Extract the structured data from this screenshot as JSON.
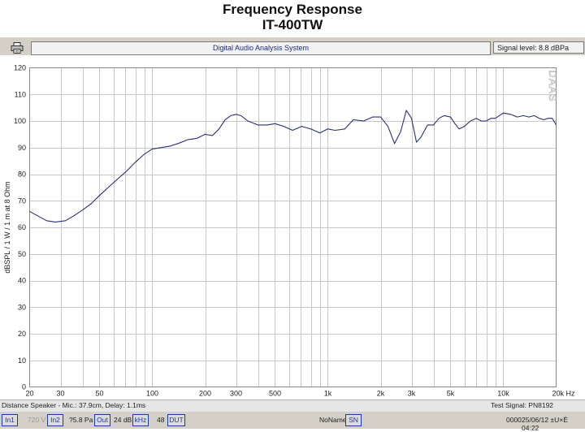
{
  "header": {
    "title": "Frequency Response",
    "subtitle": "IT-400TW"
  },
  "toolbar": {
    "app_name": "Digital Audio Analysis System",
    "signal_level": "Signal level:  8.8 dBPa"
  },
  "status": {
    "distance": "Distance Speaker - Mic.: 37.9cm, Delay: 1.1ms",
    "test_signal": "Test Signal: PN8192",
    "in1": "In1",
    "volt": "720 V",
    "in2": "In2",
    "pa": "?5.8 Pa",
    "out": "Out",
    "db": "24 dB",
    "khz": "kHz",
    "num48": "48",
    "dut": "DUT",
    "noname": "NoName",
    "sn": "SN",
    "code": "0000",
    "datetime": "25/06/12 ±U×È 04:22"
  },
  "icons": {
    "printer": "printer-icon",
    "logo": "daas-logo"
  },
  "colors": {
    "curve": "#2a2f78",
    "grid": "#c8c8c8",
    "frame": "#888888"
  },
  "chart_data": {
    "type": "line",
    "title": "",
    "xlabel": "",
    "ylabel": "dBSPL / 1 W / 1 m at 8 Ohm",
    "xscale": "log",
    "xlim": [
      20,
      20000
    ],
    "ylim": [
      0,
      120
    ],
    "yticks": [
      0,
      10,
      20,
      30,
      40,
      50,
      60,
      70,
      80,
      90,
      100,
      110,
      120
    ],
    "xticks": [
      {
        "v": 20,
        "label": "20"
      },
      {
        "v": 30,
        "label": "30"
      },
      {
        "v": 50,
        "label": "50"
      },
      {
        "v": 100,
        "label": "100"
      },
      {
        "v": 200,
        "label": "200"
      },
      {
        "v": 300,
        "label": "300"
      },
      {
        "v": 500,
        "label": "500"
      },
      {
        "v": 1000,
        "label": "1k"
      },
      {
        "v": 2000,
        "label": "2k"
      },
      {
        "v": 3000,
        "label": "3k"
      },
      {
        "v": 5000,
        "label": "5k"
      },
      {
        "v": 10000,
        "label": "10k"
      },
      {
        "v": 20000,
        "label": "20k Hz"
      }
    ],
    "watermark": "DAAS",
    "grid": true,
    "series": [
      {
        "x": [
          20,
          22,
          25,
          28,
          32,
          36,
          40,
          45,
          50,
          56,
          63,
          71,
          80,
          90,
          100,
          112,
          125,
          140,
          160,
          180,
          200,
          220,
          240,
          260,
          280,
          300,
          320,
          350,
          400,
          450,
          500,
          560,
          630,
          710,
          800,
          900,
          1000,
          1100,
          1250,
          1400,
          1600,
          1800,
          2000,
          2200,
          2400,
          2600,
          2800,
          3000,
          3200,
          3400,
          3700,
          4000,
          4300,
          4600,
          5000,
          5300,
          5600,
          6000,
          6500,
          7000,
          7500,
          8000,
          8500,
          9000,
          10000,
          11000,
          12000,
          13000,
          14000,
          15000,
          16000,
          17000,
          18000,
          19000,
          20000
        ],
        "y": [
          66,
          64.5,
          62.5,
          62,
          62.5,
          64.5,
          66.5,
          69,
          72,
          75,
          78,
          81,
          84.5,
          87.5,
          89.5,
          90,
          90.5,
          91.5,
          93,
          93.5,
          95,
          94.5,
          97,
          100.5,
          102,
          102.5,
          102,
          100,
          98.5,
          98.5,
          99,
          98,
          96.5,
          98,
          97,
          95.5,
          97,
          96.5,
          97,
          100.5,
          100,
          101.5,
          101.5,
          98,
          91.5,
          96,
          104,
          101,
          92,
          94,
          98.5,
          98.5,
          101,
          102,
          101.5,
          99,
          97,
          98,
          100,
          101,
          100,
          100,
          101,
          101,
          103,
          102.5,
          101.5,
          102,
          101.5,
          102,
          101,
          100.5,
          101,
          101,
          98.5
        ]
      }
    ]
  }
}
